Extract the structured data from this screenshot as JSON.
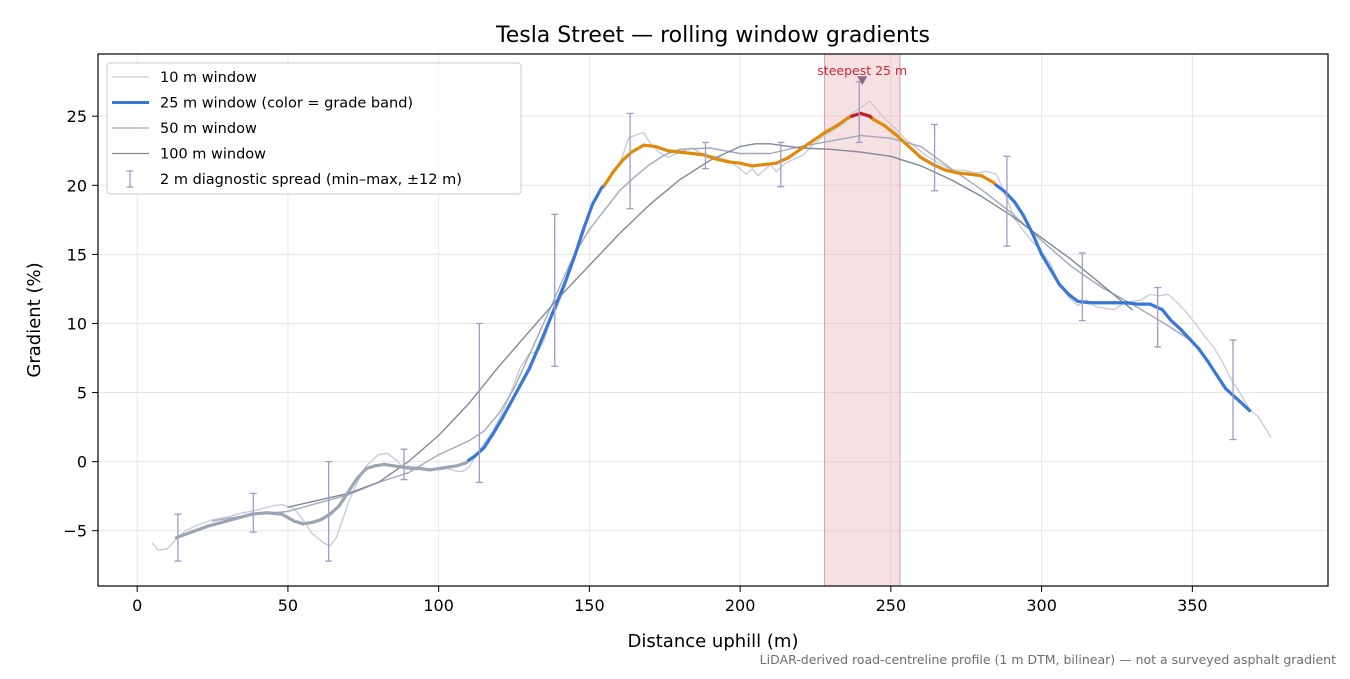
{
  "chart_data": {
    "type": "line",
    "title": "Tesla Street — rolling window gradients",
    "xlabel": "Distance uphill (m)",
    "ylabel": "Gradient (%)",
    "xlim": [
      -13,
      395
    ],
    "ylim": [
      -9,
      29.5
    ],
    "x_ticks": [
      0,
      50,
      100,
      150,
      200,
      250,
      300,
      350
    ],
    "y_ticks": [
      -5,
      0,
      5,
      10,
      15,
      20,
      25
    ],
    "grid": true,
    "legend_position": "top-left",
    "footnote": "LiDAR-derived road-centreline profile (1 m DTM, bilinear) — not a surveyed asphalt gradient",
    "legend": [
      {
        "label": "10 m window",
        "kind": "line",
        "color": "#c5cad5",
        "width": 1.3
      },
      {
        "label": "25 m window (color = grade band)",
        "kind": "line",
        "color": "#3a78d8",
        "width": 3
      },
      {
        "label": "50 m window",
        "kind": "line",
        "color": "#a2a9bb",
        "width": 1.3
      },
      {
        "label": "100 m window",
        "kind": "line",
        "color": "#80889a",
        "width": 1.3
      },
      {
        "label": "2 m diagnostic spread (min–max, ±12 m)",
        "kind": "errorbar",
        "color": "#a09bc4"
      }
    ],
    "highlight": {
      "x_range": [
        228,
        253
      ],
      "color": "#e8b4bb",
      "label": "steepest 25 m",
      "marker_x": 240.5,
      "marker_y": 27.6,
      "label_color": "#c6283a"
    },
    "grade_band_colors": {
      "below_20": "#3a78d8",
      "20_to_25": "#de8a0a",
      "above_25": "#c21e2b",
      "low_grade": "#9aa6b6"
    },
    "series": [
      {
        "name": "10 m window",
        "color": "#c5cad5",
        "x": [
          5,
          7,
          10,
          13,
          16,
          20,
          25,
          30,
          35,
          40,
          45,
          48,
          52,
          55,
          58,
          62,
          64,
          66,
          68,
          70,
          73,
          76,
          80,
          83,
          86,
          88,
          90,
          93,
          96,
          100,
          103,
          106,
          108,
          110,
          112,
          115,
          118,
          121,
          124,
          127,
          130,
          133,
          135,
          137,
          139,
          142,
          145,
          148,
          151,
          154,
          157,
          160,
          163,
          166,
          168,
          170,
          173,
          176,
          180,
          184,
          188,
          192,
          196,
          200,
          202,
          204,
          206,
          208,
          210,
          212,
          215,
          218,
          221,
          224,
          228,
          231,
          234,
          237,
          240,
          243,
          246,
          249,
          252,
          255,
          258,
          262,
          266,
          270,
          274,
          278,
          282,
          285,
          288,
          291,
          294,
          297,
          300,
          303,
          306,
          309,
          312,
          315,
          318,
          321,
          324,
          327,
          330,
          333,
          336,
          339,
          342,
          345,
          348,
          351,
          354,
          357,
          360,
          363,
          366,
          369,
          372,
          376
        ],
        "y": [
          -5.9,
          -6.4,
          -6.3,
          -5.6,
          -5.0,
          -4.6,
          -4.2,
          -4.0,
          -3.7,
          -3.5,
          -3.2,
          -3.1,
          -3.4,
          -4.2,
          -5.2,
          -5.9,
          -6.1,
          -5.5,
          -4.3,
          -3.0,
          -1.5,
          -0.3,
          0.5,
          0.6,
          0.1,
          -0.4,
          -0.3,
          -0.4,
          -0.5,
          -0.6,
          -0.5,
          -0.7,
          -0.7,
          -0.4,
          0.3,
          1.3,
          2.2,
          3.5,
          5.0,
          6.8,
          7.8,
          8.0,
          8.8,
          10.3,
          11.0,
          12.7,
          14.7,
          16.5,
          18.8,
          19.8,
          20.7,
          21.5,
          23.4,
          23.7,
          23.8,
          23.1,
          22.4,
          22.0,
          22.4,
          22.7,
          22.2,
          22.1,
          21.8,
          21.2,
          20.8,
          21.2,
          20.7,
          21.1,
          21.5,
          21.0,
          21.6,
          21.9,
          22.2,
          22.9,
          23.6,
          24.0,
          24.4,
          25.2,
          25.6,
          26.1,
          25.3,
          24.6,
          24.0,
          23.3,
          22.8,
          22.1,
          21.6,
          21.1,
          21.1,
          20.9,
          21.0,
          20.8,
          19.3,
          17.6,
          16.7,
          15.9,
          15.2,
          14.3,
          12.8,
          11.9,
          11.3,
          11.7,
          11.2,
          11.1,
          11.0,
          11.4,
          11.6,
          11.7,
          12.1,
          12.0,
          12.1,
          11.5,
          10.8,
          10.0,
          9.1,
          8.3,
          7.2,
          5.9,
          4.9,
          3.8,
          3.2,
          1.8
        ]
      },
      {
        "name": "50 m window",
        "color": "#a2a9bb",
        "x": [
          25,
          30,
          40,
          50,
          60,
          70,
          80,
          90,
          100,
          110,
          115,
          120,
          125,
          130,
          135,
          140,
          145,
          150,
          155,
          160,
          165,
          170,
          175,
          180,
          190,
          200,
          210,
          220,
          230,
          240,
          250,
          260,
          270,
          280,
          290,
          300,
          310,
          320,
          330,
          340,
          350
        ],
        "y": [
          -4.3,
          -4.1,
          -3.8,
          -3.6,
          -3.0,
          -2.4,
          -1.5,
          -0.8,
          0.5,
          1.5,
          2.2,
          3.5,
          5.3,
          7.7,
          10.1,
          12.6,
          15.0,
          16.8,
          18.2,
          19.6,
          20.6,
          21.5,
          22.2,
          22.6,
          22.7,
          22.3,
          22.3,
          22.8,
          23.2,
          23.6,
          23.4,
          22.8,
          21.2,
          19.7,
          18.0,
          16.0,
          14.1,
          12.6,
          11.4,
          10.1,
          8.7
        ]
      },
      {
        "name": "100 m window",
        "color": "#80889a",
        "x": [
          50,
          60,
          70,
          80,
          90,
          100,
          110,
          120,
          130,
          140,
          150,
          160,
          170,
          180,
          190,
          200,
          205,
          210,
          220,
          230,
          240,
          250,
          260,
          270,
          280,
          290,
          300,
          310,
          320,
          330
        ],
        "y": [
          -3.3,
          -2.8,
          -2.3,
          -1.5,
          0.0,
          1.9,
          4.2,
          6.9,
          9.4,
          11.9,
          14.2,
          16.5,
          18.6,
          20.4,
          21.8,
          22.8,
          23.0,
          23.0,
          22.7,
          22.6,
          22.4,
          22.1,
          21.4,
          20.4,
          19.2,
          17.8,
          16.2,
          14.6,
          12.8,
          11.0
        ]
      }
    ],
    "series_25m": {
      "name": "25 m window (color = grade band)",
      "x": [
        13,
        18,
        23,
        28,
        33,
        38,
        43,
        48,
        52,
        55,
        58,
        61,
        64,
        67,
        70,
        73,
        76,
        79,
        82,
        85,
        88,
        91,
        94,
        97,
        100,
        103,
        106,
        109,
        110,
        112,
        115,
        118,
        121,
        124,
        127,
        130,
        133,
        136,
        139,
        142,
        145,
        148,
        151,
        154,
        155,
        158,
        161,
        164,
        168,
        172,
        176,
        180,
        184,
        188,
        192,
        196,
        200,
        204,
        208,
        212,
        216,
        220,
        224,
        228,
        232,
        236,
        237,
        240,
        243,
        244,
        248,
        252,
        256,
        260,
        264,
        268,
        272,
        276,
        280,
        284,
        285,
        288,
        291,
        294,
        297,
        300,
        303,
        306,
        309,
        312,
        316,
        320,
        324,
        328,
        332,
        336,
        340,
        343,
        346,
        349,
        352,
        355,
        358,
        361,
        364,
        367,
        369
      ],
      "y": [
        -5.5,
        -5.1,
        -4.7,
        -4.4,
        -4.1,
        -3.8,
        -3.7,
        -3.8,
        -4.3,
        -4.5,
        -4.4,
        -4.2,
        -3.8,
        -3.2,
        -2.2,
        -1.2,
        -0.5,
        -0.3,
        -0.2,
        -0.3,
        -0.4,
        -0.5,
        -0.5,
        -0.6,
        -0.5,
        -0.4,
        -0.3,
        -0.1,
        0.1,
        0.4,
        1.0,
        2.0,
        3.1,
        4.3,
        5.5,
        6.7,
        8.2,
        9.8,
        11.4,
        13.0,
        14.8,
        16.8,
        18.6,
        19.8,
        20.0,
        21.0,
        21.8,
        22.4,
        22.9,
        22.8,
        22.5,
        22.4,
        22.3,
        22.2,
        21.9,
        21.7,
        21.6,
        21.4,
        21.5,
        21.6,
        22.0,
        22.6,
        23.2,
        23.8,
        24.3,
        24.9,
        25.0,
        25.2,
        25.0,
        24.8,
        24.3,
        23.6,
        22.8,
        22.0,
        21.5,
        21.1,
        20.9,
        20.8,
        20.7,
        20.2,
        20.0,
        19.5,
        18.8,
        17.8,
        16.5,
        15.0,
        13.9,
        12.8,
        12.1,
        11.6,
        11.5,
        11.5,
        11.5,
        11.5,
        11.4,
        11.4,
        11.0,
        10.2,
        9.6,
        8.9,
        8.2,
        7.3,
        6.3,
        5.3,
        4.7,
        4.1,
        3.7
      ]
    },
    "errorbars": [
      {
        "x": 13.5,
        "lo": -7.2,
        "hi": -3.8
      },
      {
        "x": 38.5,
        "lo": -5.1,
        "hi": -2.3
      },
      {
        "x": 63.5,
        "lo": -7.2,
        "hi": 0.0
      },
      {
        "x": 88.5,
        "lo": -1.3,
        "hi": 0.9
      },
      {
        "x": 113.5,
        "lo": -1.5,
        "hi": 10.0
      },
      {
        "x": 138.5,
        "lo": 6.9,
        "hi": 17.9
      },
      {
        "x": 163.5,
        "lo": 18.3,
        "hi": 25.2
      },
      {
        "x": 188.5,
        "lo": 21.2,
        "hi": 23.1
      },
      {
        "x": 213.5,
        "lo": 19.9,
        "hi": 23.1
      },
      {
        "x": 239.5,
        "lo": 23.1,
        "hi": 27.5
      },
      {
        "x": 264.5,
        "lo": 19.6,
        "hi": 24.4
      },
      {
        "x": 288.5,
        "lo": 15.6,
        "hi": 22.1
      },
      {
        "x": 313.5,
        "lo": 10.2,
        "hi": 15.1
      },
      {
        "x": 338.5,
        "lo": 8.3,
        "hi": 12.6
      },
      {
        "x": 363.5,
        "lo": 1.6,
        "hi": 8.8
      }
    ]
  }
}
